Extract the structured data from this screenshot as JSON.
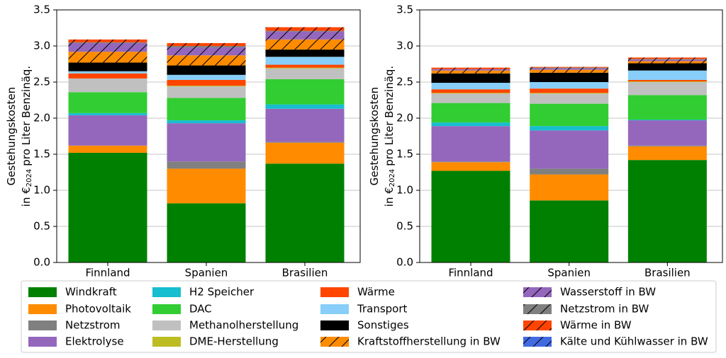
{
  "chart_data": [
    {
      "type": "bar",
      "stacked": true,
      "categories": [
        "Finnland",
        "Spanien",
        "Brasilien"
      ],
      "ylabel": {
        "line1": "Gestehungskosten",
        "prefix": "in €",
        "subscript": "2024",
        "suffix": "pro Liter Benzinäq."
      },
      "ylim": [
        0,
        3.5
      ],
      "yticks": [
        {
          "value": 0,
          "label": "0.0"
        },
        0.5,
        {
          "value": 1,
          "label": "1.0"
        },
        1.5,
        {
          "value": 2,
          "label": "2.0"
        },
        2.5,
        {
          "value": 3,
          "label": "3.0"
        },
        3.5
      ],
      "grid": true,
      "series": [
        {
          "name": "Windkraft",
          "color": "#008000",
          "values": [
            1.52,
            0.82,
            1.37
          ]
        },
        {
          "name": "Photovoltaik",
          "color": "#ff8c00",
          "values": [
            0.1,
            0.48,
            0.29
          ]
        },
        {
          "name": "Netzstrom",
          "color": "#808080",
          "values": [
            0.0,
            0.1,
            0.01
          ]
        },
        {
          "name": "Elektrolyse",
          "color": "#9467bd",
          "values": [
            0.42,
            0.53,
            0.46
          ]
        },
        {
          "name": "H2 Speicher",
          "color": "#17becf",
          "values": [
            0.03,
            0.04,
            0.06
          ]
        },
        {
          "name": "DAC",
          "color": "#32cd32",
          "values": [
            0.29,
            0.31,
            0.35
          ]
        },
        {
          "name": "Methanolherstellung",
          "color": "#c0c0c0",
          "values": [
            0.19,
            0.16,
            0.15
          ]
        },
        {
          "name": "DME-Herstellung",
          "color": "#bcbd22",
          "values": [
            0.0,
            0.01,
            0.01
          ]
        },
        {
          "name": "Wärme",
          "color": "#ff4500",
          "values": [
            0.07,
            0.08,
            0.04
          ]
        },
        {
          "name": "Transport",
          "color": "#87cefa",
          "values": [
            0.03,
            0.07,
            0.11
          ]
        },
        {
          "name": "Sonstiges",
          "color": "#000000",
          "values": [
            0.12,
            0.13,
            0.1
          ]
        },
        {
          "name": "Kraftstoffherstellung in BW",
          "color": "#ff8c00",
          "hatch": true,
          "values": [
            0.15,
            0.14,
            0.14
          ]
        },
        {
          "name": "Wasserstoff in BW",
          "color": "#9467bd",
          "hatch": true,
          "values": [
            0.12,
            0.11,
            0.11
          ]
        },
        {
          "name": "Netzstrom in BW",
          "color": "#808080",
          "hatch": true,
          "values": [
            0.01,
            0.02,
            0.01
          ]
        },
        {
          "name": "Wärme in BW",
          "color": "#ff4500",
          "hatch": true,
          "values": [
            0.04,
            0.04,
            0.05
          ]
        },
        {
          "name": "Kälte und Kühlwasser in BW",
          "color": "#4169e1",
          "hatch": true,
          "values": [
            0.0,
            0.0,
            0.0
          ]
        }
      ]
    },
    {
      "type": "bar",
      "stacked": true,
      "categories": [
        "Finnland",
        "Spanien",
        "Brasilien"
      ],
      "ylabel": {
        "line1": "Gestehungskosten",
        "prefix": "in €",
        "subscript": "2024",
        "suffix": "pro Liter Benzinäq."
      },
      "ylim": [
        0,
        3.5
      ],
      "yticks": [
        {
          "value": 0,
          "label": "0.0"
        },
        0.5,
        {
          "value": 1,
          "label": "1.0"
        },
        1.5,
        {
          "value": 2,
          "label": "2.0"
        },
        2.5,
        {
          "value": 3,
          "label": "3.0"
        },
        3.5
      ],
      "grid": true,
      "series": [
        {
          "name": "Windkraft",
          "color": "#008000",
          "values": [
            1.27,
            0.86,
            1.42
          ]
        },
        {
          "name": "Photovoltaik",
          "color": "#ff8c00",
          "values": [
            0.12,
            0.36,
            0.19
          ]
        },
        {
          "name": "Netzstrom",
          "color": "#808080",
          "values": [
            0.01,
            0.08,
            0.01
          ]
        },
        {
          "name": "Elektrolyse",
          "color": "#9467bd",
          "values": [
            0.49,
            0.53,
            0.35
          ]
        },
        {
          "name": "H2 Speicher",
          "color": "#17becf",
          "values": [
            0.05,
            0.06,
            0.01
          ]
        },
        {
          "name": "DAC",
          "color": "#32cd32",
          "values": [
            0.27,
            0.31,
            0.34
          ]
        },
        {
          "name": "Methanolherstellung",
          "color": "#c0c0c0",
          "values": [
            0.13,
            0.14,
            0.18
          ]
        },
        {
          "name": "DME-Herstellung",
          "color": "#bcbd22",
          "values": [
            0.01,
            0.01,
            0.01
          ]
        },
        {
          "name": "Wärme",
          "color": "#ff4500",
          "values": [
            0.05,
            0.06,
            0.02
          ]
        },
        {
          "name": "Transport",
          "color": "#87cefa",
          "values": [
            0.09,
            0.09,
            0.13
          ]
        },
        {
          "name": "Sonstiges",
          "color": "#000000",
          "values": [
            0.13,
            0.13,
            0.1
          ]
        },
        {
          "name": "Kraftstoffherstellung in BW",
          "color": "#ff8c00",
          "hatch": true,
          "values": [
            0.04,
            0.04,
            0.03
          ]
        },
        {
          "name": "Wasserstoff in BW",
          "color": "#9467bd",
          "hatch": true,
          "values": [
            0.02,
            0.02,
            0.02
          ]
        },
        {
          "name": "Netzstrom in BW",
          "color": "#808080",
          "hatch": true,
          "values": [
            0.0,
            0.01,
            0.01
          ]
        },
        {
          "name": "Wärme in BW",
          "color": "#ff4500",
          "hatch": true,
          "values": [
            0.02,
            0.01,
            0.02
          ]
        },
        {
          "name": "Kälte und Kühlwasser in BW",
          "color": "#4169e1",
          "hatch": true,
          "values": [
            0.0,
            0.0,
            0.0
          ]
        }
      ]
    }
  ]
}
